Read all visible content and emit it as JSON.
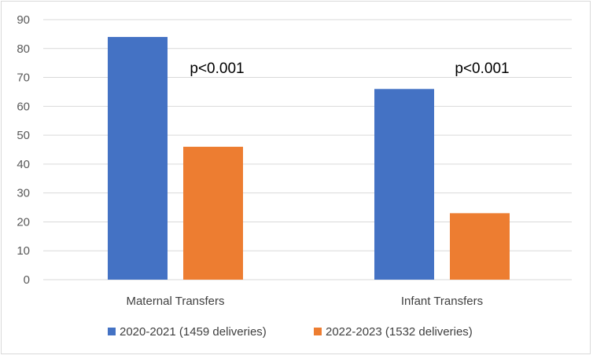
{
  "chart_data": {
    "type": "bar",
    "title": "",
    "xlabel": "",
    "ylabel": "",
    "categories": [
      "Maternal Transfers",
      "Infant Transfers"
    ],
    "series": [
      {
        "name": "2020-2021 (1459 deliveries)",
        "values": [
          84,
          66
        ],
        "color": "#4472C4"
      },
      {
        "name": "2022-2023 (1532 deliveries)",
        "values": [
          46,
          23
        ],
        "color": "#ED7D31"
      }
    ],
    "ylim": [
      0,
      90
    ],
    "yticks": [
      0,
      10,
      20,
      30,
      40,
      50,
      60,
      70,
      80,
      90
    ],
    "grid": true,
    "legend_position": "bottom",
    "annotations": [
      "p<0.001",
      "p<0.001"
    ],
    "grid_color": "#d9d9d9"
  }
}
